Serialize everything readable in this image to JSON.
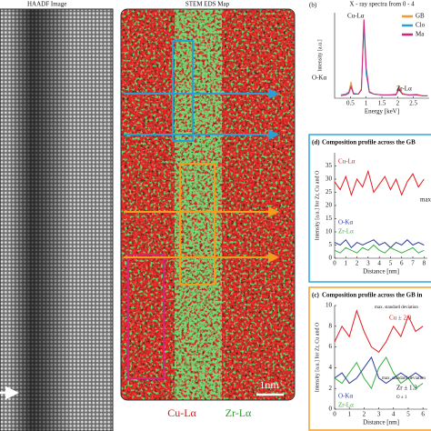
{
  "figure": {
    "haadf_title": "HAADF Image",
    "eds_title": "STEM EDS Map",
    "scale_bar": "1nm",
    "legend": [
      "Cu-Lα",
      "Zr-Lα"
    ],
    "panel_b": "(b)",
    "panel_d": "(d)",
    "panel_c": "(c)"
  },
  "chart_data": [
    {
      "type": "line",
      "title": "X - ray spectra from 0 - 4",
      "x_label": "Energy [keV]",
      "y_label": "Intensity [a.u.]",
      "x": [
        0.2,
        0.35,
        0.45,
        0.52,
        0.6,
        0.75,
        0.85,
        0.93,
        1.0,
        1.1,
        1.25,
        1.5,
        1.75,
        1.95,
        2.04,
        2.15,
        2.35,
        2.6,
        2.8,
        2.95
      ],
      "xlim": [
        0,
        3
      ],
      "xticks": [
        0.5,
        1,
        1.5,
        2,
        2.5
      ],
      "ylim": [
        0,
        1.05
      ],
      "series": [
        {
          "name": "GB",
          "color": "#f39c34",
          "values": [
            0.04,
            0.05,
            0.08,
            0.2,
            0.06,
            0.05,
            0.12,
            0.95,
            0.35,
            0.08,
            0.05,
            0.04,
            0.04,
            0.05,
            0.15,
            0.06,
            0.04,
            0.05,
            0.03,
            0.03
          ]
        },
        {
          "name": "Clo",
          "color": "#2a9fd6",
          "values": [
            0.04,
            0.05,
            0.07,
            0.15,
            0.06,
            0.05,
            0.1,
            0.9,
            0.3,
            0.07,
            0.05,
            0.04,
            0.04,
            0.05,
            0.1,
            0.05,
            0.04,
            0.04,
            0.03,
            0.03
          ]
        },
        {
          "name": "Ma",
          "color": "#d6247a",
          "values": [
            0.03,
            0.04,
            0.06,
            0.14,
            0.05,
            0.05,
            0.1,
            0.97,
            0.38,
            0.08,
            0.05,
            0.04,
            0.04,
            0.04,
            0.12,
            0.05,
            0.04,
            0.04,
            0.03,
            0.03
          ]
        }
      ],
      "annotations": [
        "Cu-Lα",
        "O-Kα",
        "Zr-Lα"
      ]
    },
    {
      "type": "line",
      "title": "Composition profile across the GB",
      "x_label": "Distance [nm]",
      "y_label": "Intensity [a.u.] for Zr, Cu and O",
      "x": [
        0,
        0.5,
        1,
        1.5,
        2,
        2.5,
        3,
        3.5,
        4,
        4.5,
        5,
        5.5,
        6,
        6.5,
        7,
        7.5,
        8
      ],
      "xlim": [
        0,
        8.3
      ],
      "xticks": [
        0,
        1,
        2,
        3,
        4,
        5,
        6,
        7,
        8
      ],
      "ylim": [
        0,
        40
      ],
      "yticks": [
        0,
        5,
        10,
        15,
        20,
        25,
        30,
        35
      ],
      "series": [
        {
          "name": "Cu-Lα",
          "color": "#e41a1c",
          "values": [
            29,
            26,
            31,
            24,
            30,
            27,
            33,
            25,
            28,
            31,
            26,
            30,
            24,
            29,
            32,
            27,
            30
          ]
        },
        {
          "name": "O-Kα",
          "color": "#2c3e9e",
          "values": [
            6,
            5,
            7,
            4,
            6,
            5,
            6,
            7,
            5,
            6,
            4,
            6,
            5,
            7,
            5,
            6,
            5
          ]
        },
        {
          "name": "Zr-Lα",
          "color": "#3cb043",
          "values": [
            3,
            2,
            4,
            3,
            2,
            4,
            3,
            5,
            3,
            2,
            4,
            3,
            2,
            3,
            4,
            2,
            3
          ]
        }
      ],
      "annotations": [
        "max."
      ]
    },
    {
      "type": "line",
      "title": "Composition profile across the GB in",
      "x_label": "Distance [nm]",
      "y_label": "Intensity [a.u.] for Zr, Cu and O",
      "x": [
        0,
        0.5,
        1,
        1.5,
        2,
        2.5,
        3,
        3.5,
        4,
        4.5,
        5,
        5.5,
        6
      ],
      "xlim": [
        0,
        6.3
      ],
      "xticks": [
        0,
        1,
        2,
        3,
        4,
        5,
        6
      ],
      "ylim": [
        0,
        10
      ],
      "yticks": [
        0,
        2,
        4,
        6,
        8,
        10
      ],
      "series": [
        {
          "name": "Cu-Lα",
          "color": "#e41a1c",
          "values": [
            6.5,
            8,
            7,
            9.5,
            7.5,
            6,
            5.5,
            6.5,
            8,
            7,
            9,
            7.5,
            8
          ]
        },
        {
          "name": "Zr-Lα",
          "color": "#3cb043",
          "values": [
            3,
            2.5,
            3.5,
            4.5,
            3,
            2,
            4,
            5,
            3.5,
            2.5,
            3,
            2,
            2.5
          ]
        },
        {
          "name": "O-Kα",
          "color": "#2c3e9e",
          "values": [
            3,
            3.5,
            2.5,
            3,
            4,
            5,
            3,
            2.5,
            3,
            3.5,
            3,
            3.5,
            3
          ]
        }
      ],
      "annotations": [
        "max. standard deviation",
        "Cu ± 2.9",
        "max. standard deviation",
        "Zr ± 1.3",
        "O ± 1"
      ]
    }
  ]
}
